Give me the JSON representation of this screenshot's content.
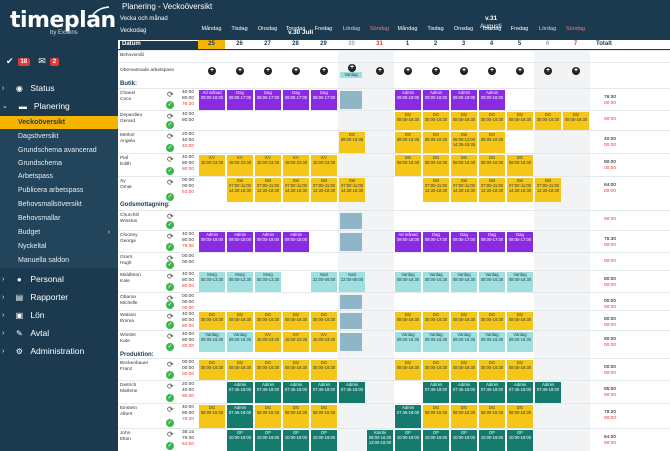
{
  "app": {
    "logo": "timeplan",
    "logo_sub": "by Exsens"
  },
  "tasks": {
    "check_count": "18",
    "mail_count": "2"
  },
  "nav": [
    {
      "label": "Status",
      "icon": "status-icon"
    },
    {
      "label": "Planering",
      "icon": "folder-icon"
    },
    {
      "label": "Personal",
      "icon": "person-icon"
    },
    {
      "label": "Rapporter",
      "icon": "report-icon"
    },
    {
      "label": "Lön",
      "icon": "wallet-icon"
    },
    {
      "label": "Avtal",
      "icon": "wrench-icon"
    },
    {
      "label": "Administration",
      "icon": "gear-icon"
    }
  ],
  "subnav": [
    "Veckoöversikt",
    "Dagsöversikt",
    "Grundschema avancerad",
    "Grundschema",
    "Arbetspass",
    "Publicera arbetspass",
    "Behovsmallsöversikt",
    "Behovsmallar",
    "Budget",
    "Nyckeltal",
    "Manuella saldon"
  ],
  "title": "Planering - Veckoöversikt",
  "header": {
    "vecka_och_manad": "Vecka och månad",
    "veckodag": "Veckodag",
    "datum": "Datum",
    "week1": "v.30 Juli",
    "week2": "v.31",
    "week2b": "Augusti",
    "totalt": "Totalt"
  },
  "days": [
    "Måndag",
    "Tisdag",
    "Onsdag",
    "Torsdag",
    "Fredag",
    "Lördag",
    "Söndag",
    "Måndag",
    "Tisdag",
    "Onsdag",
    "Torsdag",
    "Fredag",
    "Lördag",
    "Söndag"
  ],
  "dates": [
    "25",
    "26",
    "27",
    "28",
    "29",
    "30",
    "31",
    "1",
    "2",
    "3",
    "4",
    "5",
    "6",
    "7"
  ],
  "rows_top": {
    "behov": "Behovsmål",
    "obem": "Obemannade arbetspass",
    "vardag": "Vardag"
  },
  "sections": {
    "butik": "Butik:",
    "gods": "Godsmottagning:",
    "prod": "Produktion:"
  },
  "people": [
    {
      "n1": "Chanel",
      "n2": "Coco",
      "h": [
        "40:00",
        "80:00",
        "76:30"
      ]
    },
    {
      "n1": "Depardieu",
      "n2": "Gerard",
      "h": [
        "40:00",
        "80:00",
        ""
      ]
    },
    {
      "n1": "Merkel",
      "n2": "Angela",
      "h": [
        "20:00",
        "40:00",
        "40:00"
      ]
    },
    {
      "n1": "Piaf",
      "n2": "Edith",
      "h": [
        "40:00",
        "80:00",
        "80:00"
      ]
    },
    {
      "n1": "Sy",
      "n2": "Omar",
      "h": [
        "00:00",
        "00:00",
        "64:00"
      ]
    },
    {
      "n1": "Churchill",
      "n2": "Winston",
      "h": [
        "",
        "",
        ""
      ]
    },
    {
      "n1": "Clooney",
      "n2": "George",
      "h": [
        "40:00",
        "80:00",
        "76:30"
      ]
    },
    {
      "n1": "Grant",
      "n2": "Hugh",
      "h": [
        "00:00",
        "00:00",
        ""
      ]
    },
    {
      "n1": "Middleton",
      "n2": "Kate",
      "h": [
        "40:00",
        "80:00",
        "80:00"
      ]
    },
    {
      "n1": "Obama",
      "n2": "Michelle",
      "h": [
        "00:00",
        "00:00",
        "00:00"
      ]
    },
    {
      "n1": "Watson",
      "n2": "Emma",
      "h": [
        "40:00",
        "80:00",
        "80:00"
      ]
    },
    {
      "n1": "Winslet",
      "n2": "Kate",
      "h": [
        "40:00",
        "80:00",
        "80:00"
      ]
    },
    {
      "n1": "Beckenbauer",
      "n2": "Franz",
      "h": [
        "00:00",
        "00:00",
        "00:00"
      ]
    },
    {
      "n1": "Dietrich",
      "n2": "Marlene",
      "h": [
        "20:00",
        "40:00",
        "85:00"
      ]
    },
    {
      "n1": "Einstein",
      "n2": "Albert",
      "h": [
        "40:00",
        "80:00",
        "79:20"
      ]
    },
    {
      "n1": "John",
      "n2": "Elton",
      "h": [
        "38:15",
        "76:30",
        "64:00"
      ]
    }
  ],
  "shifts": {
    "admin": "Admin",
    "ad_manad": "Ad månad",
    "dag": "Dag",
    "dg": "DG",
    "kv": "KV",
    "del": "Del",
    "morg": "Morg",
    "natt": "Natt",
    "vardag": "Vardag",
    "dp": "DP",
    "kombi": "Kombi",
    "t1": "09:00-18:00",
    "t2": "08:00-17:00",
    "t3": "08:00-16:30",
    "t4": "15:00-23:30",
    "t5": "07:00-11:00",
    "t6": "14:30-18:30",
    "t7": "05:00-13:30",
    "t8": "22:00-06:00",
    "t9": "07:45-18:00",
    "t10": "10:00-19:00",
    "t11": "13:00-16:00",
    "t12": "08:00-12:00",
    "t13": "14:35-18:35"
  },
  "colors": {
    "nav": "#1b3a4f",
    "accent": "#f5b400",
    "purple": "#8a2be2",
    "teal": "#157a6e",
    "cyan": "#9fe0de",
    "yellow": "#f5c518",
    "red": "#e23a3a"
  }
}
